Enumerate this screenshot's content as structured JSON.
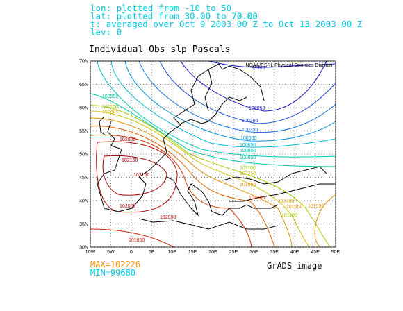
{
  "header": {
    "lines": [
      "lon: plotted from -10 to 50",
      "lat: plotted from 30.00 to 70.00",
      "t: averaged over Oct 9 2003 00 Z to Oct 13 2003 00 Z",
      "lev: 0"
    ],
    "color": "#00c8e6"
  },
  "title": "Individual Obs slp Pascals",
  "credit": "NOAA/ESRL Physical Sciences Division",
  "map": {
    "lon_range": [
      -10,
      50
    ],
    "lat_range": [
      30,
      70
    ],
    "lon_ticks": [
      {
        "value": -10,
        "label": "10W"
      },
      {
        "value": -5,
        "label": "5W"
      },
      0,
      {
        "value": 5,
        "label": "5E"
      },
      {
        "value": 10,
        "label": "10E"
      },
      {
        "value": 15,
        "label": "15E"
      },
      {
        "value": 20,
        "label": "20E"
      },
      {
        "value": 25,
        "label": "25E"
      },
      {
        "value": 30,
        "label": "30E"
      },
      {
        "value": 35,
        "label": "35E"
      },
      {
        "value": 40,
        "label": "40E"
      },
      {
        "value": 45,
        "label": "45E"
      },
      {
        "value": 50,
        "label": "50E"
      }
    ],
    "lat_ticks": [
      {
        "value": 30,
        "label": "30N"
      },
      {
        "value": 35,
        "label": "35N"
      },
      {
        "value": 40,
        "label": "40N"
      },
      {
        "value": 45,
        "label": "45N"
      },
      {
        "value": 50,
        "label": "50N"
      },
      {
        "value": 55,
        "label": "55N"
      },
      {
        "value": 60,
        "label": "60N"
      },
      {
        "value": 65,
        "label": "65N"
      },
      {
        "value": 70,
        "label": "70N"
      }
    ],
    "contour_labels": [
      {
        "text": "99900",
        "color": "#1010c0"
      },
      {
        "text": "100050",
        "color": "#1010c0"
      },
      {
        "text": "100200",
        "color": "#1030d0"
      },
      {
        "text": "100350",
        "color": "#1060e0"
      },
      {
        "text": "100500",
        "color": "#0090e0"
      },
      {
        "text": "100650",
        "color": "#00b8d8"
      },
      {
        "text": "100800",
        "color": "#00c8c0"
      },
      {
        "text": "100950",
        "color": "#00c8a0"
      },
      {
        "text": "101100",
        "color": "#a0c800"
      },
      {
        "text": "101250",
        "color": "#d0c000"
      },
      {
        "text": "101550",
        "color": "#e09000"
      },
      {
        "text": "101700",
        "color": "#d03000"
      },
      {
        "text": "100950",
        "color": "#00c8a0"
      },
      {
        "text": "101100",
        "color": "#a0c800"
      },
      {
        "text": "101400",
        "color": "#e0b000"
      },
      {
        "text": "102000",
        "color": "#b00000"
      },
      {
        "text": "102150",
        "color": "#a00000"
      },
      {
        "text": "102150",
        "color": "#a00000"
      },
      {
        "text": "102000",
        "color": "#b00000"
      },
      {
        "text": "102000",
        "color": "#c00000"
      },
      {
        "text": "101850",
        "color": "#d02000"
      },
      {
        "text": "101400",
        "color": "#e0b000"
      },
      {
        "text": "101550",
        "color": "#e09000"
      },
      {
        "text": "101550",
        "color": "#e09000"
      },
      {
        "text": "101100",
        "color": "#a0c800"
      }
    ]
  },
  "footer": {
    "max": "MAX=102226",
    "max_color": "#ff8c00",
    "min": "MIN=99680",
    "min_color": "#00c8e6",
    "source": "GrADS image"
  }
}
